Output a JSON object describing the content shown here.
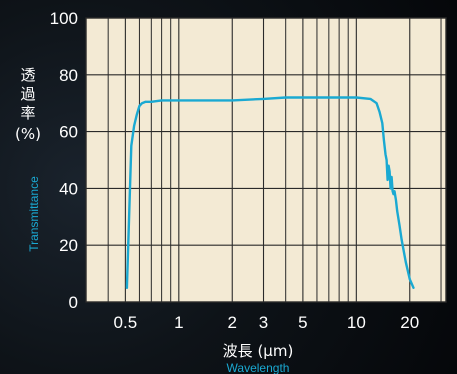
{
  "chart_data": {
    "type": "line",
    "title": "",
    "x_scale": "log",
    "xlim": [
      0.3,
      32
    ],
    "ylim": [
      0,
      100
    ],
    "grid": true,
    "colors": {
      "plot_bg": "#f3ead4",
      "grid": "#2a2a2a",
      "line": "#1aa9d2",
      "text": "#ffffff",
      "accent_text": "#1aa9d2"
    },
    "ylabel": {
      "jp_lines": [
        "透",
        "過",
        "率",
        "(%)"
      ],
      "en": "Transmittance"
    },
    "xlabel": {
      "jp": "波長 (μm)",
      "en": "Wavelength"
    },
    "x_ticks": [
      {
        "value": 0.5,
        "label": "0.5"
      },
      {
        "value": 1,
        "label": "1"
      },
      {
        "value": 2,
        "label": "2"
      },
      {
        "value": 3,
        "label": "3"
      },
      {
        "value": 5,
        "label": "5"
      },
      {
        "value": 10,
        "label": "10"
      },
      {
        "value": 20,
        "label": "20"
      }
    ],
    "y_ticks": [
      {
        "value": 0,
        "label": "0"
      },
      {
        "value": 20,
        "label": "20"
      },
      {
        "value": 40,
        "label": "40"
      },
      {
        "value": 60,
        "label": "60"
      },
      {
        "value": 80,
        "label": "80"
      },
      {
        "value": 100,
        "label": "100"
      }
    ],
    "x_minor_gridlines": [
      0.4,
      0.6,
      0.7,
      0.8,
      0.9,
      4,
      6,
      7,
      8,
      9,
      30
    ],
    "series": [
      {
        "x": [
          0.51,
          0.525,
          0.54,
          0.56,
          0.58,
          0.6,
          0.62,
          0.65,
          0.7,
          0.8,
          0.9,
          1.0,
          1.5,
          2.0,
          3.0,
          4.0,
          5.0,
          7.0,
          10.0,
          12.0,
          13.0,
          13.5,
          14.0,
          14.3,
          14.6,
          14.8,
          15.0,
          15.2,
          15.4,
          15.6,
          15.8,
          16.0,
          16.2,
          16.4,
          16.7,
          17.0,
          17.5,
          18.0,
          19.0,
          20.0,
          21.0
        ],
        "y": [
          5,
          30,
          55,
          62,
          66,
          69,
          70,
          70.5,
          70.5,
          71,
          71,
          71,
          71,
          71,
          71.5,
          72,
          72,
          72,
          72,
          71.5,
          70,
          67,
          63,
          57,
          52,
          50,
          43,
          48,
          46,
          40,
          44,
          39,
          38,
          39,
          36,
          32,
          27,
          22,
          14,
          8,
          5
        ]
      }
    ]
  }
}
